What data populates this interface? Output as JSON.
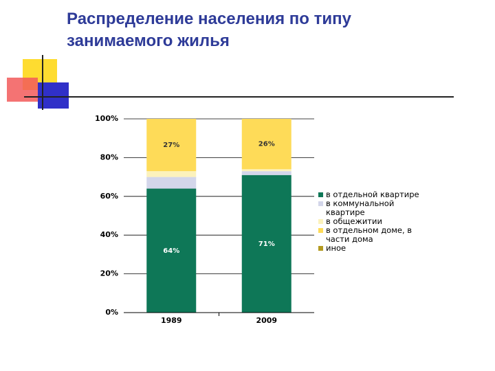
{
  "chart_data": {
    "type": "stacked-bar",
    "title": "Распределение населения по типу занимаемого жилья",
    "categories": [
      "1989",
      "2009"
    ],
    "series": [
      {
        "name": "в отдельной квартире",
        "color": "#0e7757",
        "values": [
          64,
          71
        ],
        "value_labels": [
          "64%",
          "71%"
        ]
      },
      {
        "name": "в коммунальной квартире",
        "color": "#d3d6ea",
        "values": [
          6,
          2
        ]
      },
      {
        "name": "в общежитии",
        "color": "#fcf2bc",
        "values": [
          3,
          1
        ]
      },
      {
        "name": "в отдельном доме, в части дома",
        "color": "#fedb58",
        "values": [
          27,
          26
        ],
        "value_labels": [
          "27%",
          "26%"
        ]
      },
      {
        "name": "иное",
        "color": "#b39a20",
        "values": [
          0,
          0
        ]
      }
    ],
    "ylim": [
      0,
      100
    ],
    "yticks": [
      {
        "value": 0,
        "label": "0%"
      },
      {
        "value": 20,
        "label": "20%"
      },
      {
        "value": 40,
        "label": "40%"
      },
      {
        "value": 60,
        "label": "60%"
      },
      {
        "value": 80,
        "label": "80%"
      },
      {
        "value": 100,
        "label": "100%"
      }
    ],
    "grid": true
  }
}
